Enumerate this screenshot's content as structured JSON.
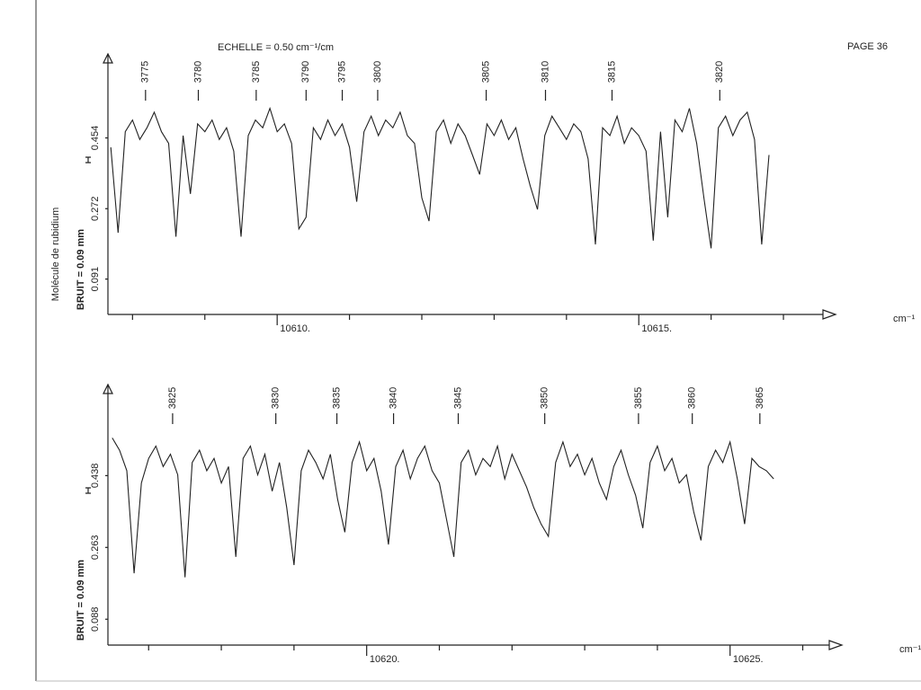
{
  "page": {
    "scale_note": "ECHELLE = 0.50 cm⁻¹/cm",
    "page_number": "PAGE 36",
    "side_label": "Molécule de rubidium"
  },
  "chart_data": [
    {
      "type": "line",
      "noise_label": "BRUIT = 0.09 mm",
      "x_label": "cm⁻¹",
      "xlim": [
        10607.66,
        10617.36
      ],
      "ylim": [
        0,
        0.67
      ],
      "xticks": [
        {
          "value": 10610,
          "label": "10610."
        },
        {
          "value": 10615,
          "label": "10615."
        }
      ],
      "xticks_minor": [
        10608,
        10609,
        10611,
        10612,
        10613,
        10614,
        10616,
        10617
      ],
      "yticks": [
        0.091,
        0.272,
        0.454
      ],
      "line_ids": [
        {
          "x": 10608.18,
          "label": "3775"
        },
        {
          "x": 10608.91,
          "label": "3780"
        },
        {
          "x": 10609.71,
          "label": "3785"
        },
        {
          "x": 10610.4,
          "label": "3790"
        },
        {
          "x": 10610.9,
          "label": "3795"
        },
        {
          "x": 10611.39,
          "label": "3800"
        },
        {
          "x": 10612.89,
          "label": "3805"
        },
        {
          "x": 10613.71,
          "label": "3810"
        },
        {
          "x": 10614.63,
          "label": "3815"
        },
        {
          "x": 10616.12,
          "label": "3820"
        }
      ],
      "x": [
        10607.7,
        10607.8,
        10607.9,
        10608,
        10608.1,
        10608.2,
        10608.3,
        10608.4,
        10608.5,
        10608.6,
        10608.7,
        10608.8,
        10608.9,
        10609,
        10609.1,
        10609.2,
        10609.3,
        10609.4,
        10609.5,
        10609.6,
        10609.7,
        10609.8,
        10609.9,
        10610,
        10610.1,
        10610.2,
        10610.3,
        10610.4,
        10610.5,
        10610.6,
        10610.7,
        10610.8,
        10610.9,
        10611,
        10611.1,
        10611.2,
        10611.3,
        10611.4,
        10611.5,
        10611.6,
        10611.7,
        10611.8,
        10611.9,
        10612,
        10612.1,
        10612.2,
        10612.3,
        10612.4,
        10612.5,
        10612.6,
        10612.7,
        10612.8,
        10612.9,
        10613,
        10613.1,
        10613.2,
        10613.3,
        10613.4,
        10613.5,
        10613.6,
        10613.7,
        10613.8,
        10613.9,
        10614,
        10614.1,
        10614.2,
        10614.3,
        10614.4,
        10614.5,
        10614.6,
        10614.7,
        10614.8,
        10614.9,
        10615,
        10615.1,
        10615.2,
        10615.3,
        10615.4,
        10615.5,
        10615.6,
        10615.7,
        10615.8,
        10615.9,
        10616,
        10616.1,
        10616.2,
        10616.3,
        10616.4,
        10616.5,
        10616.6,
        10616.7,
        10616.8
      ],
      "series": [
        {
          "color": "#222222",
          "values": [
            0.43,
            0.21,
            0.47,
            0.5,
            0.45,
            0.48,
            0.52,
            0.47,
            0.44,
            0.2,
            0.46,
            0.31,
            0.49,
            0.47,
            0.5,
            0.45,
            0.48,
            0.42,
            0.2,
            0.46,
            0.5,
            0.48,
            0.53,
            0.47,
            0.49,
            0.44,
            0.22,
            0.25,
            0.48,
            0.45,
            0.5,
            0.46,
            0.49,
            0.43,
            0.29,
            0.47,
            0.51,
            0.46,
            0.5,
            0.48,
            0.52,
            0.46,
            0.44,
            0.3,
            0.24,
            0.47,
            0.5,
            0.44,
            0.49,
            0.46,
            0.41,
            0.36,
            0.49,
            0.46,
            0.5,
            0.45,
            0.48,
            0.4,
            0.33,
            0.27,
            0.46,
            0.51,
            0.48,
            0.45,
            0.49,
            0.47,
            0.4,
            0.18,
            0.48,
            0.46,
            0.51,
            0.44,
            0.48,
            0.46,
            0.42,
            0.19,
            0.47,
            0.25,
            0.5,
            0.47,
            0.53,
            0.44,
            0.3,
            0.17,
            0.48,
            0.51,
            0.46,
            0.5,
            0.52,
            0.45,
            0.18,
            0.41
          ]
        }
      ]
    },
    {
      "type": "line",
      "noise_label": "BRUIT = 0.09 mm",
      "x_label": "cm⁻¹",
      "xlim": [
        10616.44,
        10626.34
      ],
      "ylim": [
        0.025,
        0.66
      ],
      "xticks": [
        {
          "value": 10620,
          "label": "10620."
        },
        {
          "value": 10625,
          "label": "10625."
        }
      ],
      "xticks_minor": [
        10617,
        10618,
        10619,
        10621,
        10622,
        10623,
        10624,
        10626
      ],
      "yticks": [
        0.088,
        0.263,
        0.438
      ],
      "line_ids": [
        {
          "x": 10617.33,
          "label": "3825"
        },
        {
          "x": 10618.75,
          "label": "3830"
        },
        {
          "x": 10619.59,
          "label": "3835"
        },
        {
          "x": 10620.37,
          "label": "3840"
        },
        {
          "x": 10621.26,
          "label": "3845"
        },
        {
          "x": 10622.45,
          "label": "3850"
        },
        {
          "x": 10623.74,
          "label": "3855"
        },
        {
          "x": 10624.48,
          "label": "3860"
        },
        {
          "x": 10625.41,
          "label": "3865"
        }
      ],
      "x": [
        10616.5,
        10616.6,
        10616.7,
        10616.8,
        10616.9,
        10617,
        10617.1,
        10617.2,
        10617.3,
        10617.4,
        10617.5,
        10617.6,
        10617.7,
        10617.8,
        10617.9,
        10618,
        10618.1,
        10618.2,
        10618.3,
        10618.4,
        10618.5,
        10618.6,
        10618.7,
        10618.8,
        10618.9,
        10619,
        10619.1,
        10619.2,
        10619.3,
        10619.4,
        10619.5,
        10619.6,
        10619.7,
        10619.8,
        10619.9,
        10620,
        10620.1,
        10620.2,
        10620.3,
        10620.4,
        10620.5,
        10620.6,
        10620.7,
        10620.8,
        10620.9,
        10621,
        10621.1,
        10621.2,
        10621.3,
        10621.4,
        10621.5,
        10621.6,
        10621.7,
        10621.8,
        10621.9,
        10622,
        10622.1,
        10622.2,
        10622.3,
        10622.4,
        10622.5,
        10622.6,
        10622.7,
        10622.8,
        10622.9,
        10623,
        10623.1,
        10623.2,
        10623.3,
        10623.4,
        10623.5,
        10623.6,
        10623.7,
        10623.8,
        10623.9,
        10624,
        10624.1,
        10624.2,
        10624.3,
        10624.4,
        10624.5,
        10624.6,
        10624.7,
        10624.8,
        10624.9,
        10625,
        10625.1,
        10625.2,
        10625.3,
        10625.4,
        10625.5,
        10625.6
      ],
      "series": [
        {
          "color": "#222222",
          "values": [
            0.53,
            0.5,
            0.45,
            0.2,
            0.42,
            0.48,
            0.51,
            0.46,
            0.49,
            0.44,
            0.19,
            0.47,
            0.5,
            0.45,
            0.48,
            0.42,
            0.46,
            0.24,
            0.48,
            0.51,
            0.44,
            0.49,
            0.4,
            0.47,
            0.36,
            0.22,
            0.45,
            0.5,
            0.47,
            0.43,
            0.49,
            0.38,
            0.3,
            0.47,
            0.52,
            0.45,
            0.48,
            0.4,
            0.27,
            0.46,
            0.5,
            0.43,
            0.48,
            0.51,
            0.45,
            0.42,
            0.33,
            0.24,
            0.47,
            0.5,
            0.44,
            0.48,
            0.46,
            0.51,
            0.43,
            0.49,
            0.45,
            0.41,
            0.36,
            0.32,
            0.29,
            0.47,
            0.52,
            0.46,
            0.49,
            0.44,
            0.48,
            0.42,
            0.38,
            0.46,
            0.5,
            0.44,
            0.39,
            0.31,
            0.47,
            0.51,
            0.45,
            0.48,
            0.42,
            0.44,
            0.35,
            0.28,
            0.46,
            0.5,
            0.47,
            0.52,
            0.43,
            0.32,
            0.48,
            0.46,
            0.45,
            0.43
          ]
        }
      ]
    }
  ]
}
